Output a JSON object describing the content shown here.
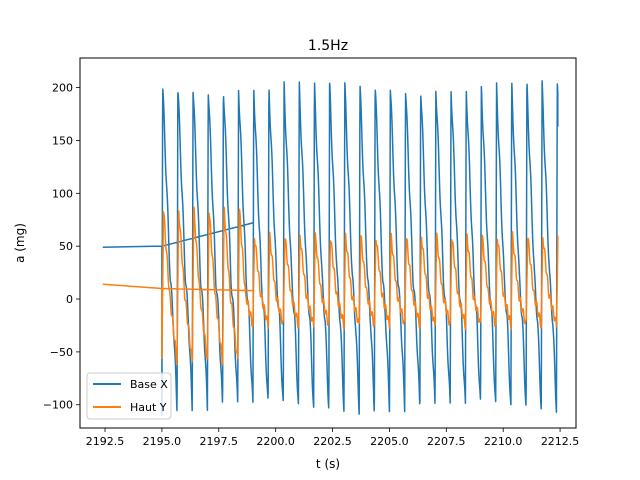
{
  "chart_data": {
    "type": "line",
    "title": "1.5Hz",
    "xlabel": "t (s)",
    "ylabel": "a (mg)",
    "xlim": [
      2191.4,
      2213.2
    ],
    "ylim": [
      -122,
      228
    ],
    "x_ticks": [
      2192.5,
      2195.0,
      2197.5,
      2200.0,
      2202.5,
      2205.0,
      2207.5,
      2210.0,
      2212.5
    ],
    "x_tick_labels": [
      "2192.5",
      "2195.0",
      "2197.5",
      "2200.0",
      "2202.5",
      "2205.0",
      "2207.5",
      "2210.0",
      "2212.5"
    ],
    "y_ticks": [
      -100,
      -50,
      0,
      50,
      100,
      150,
      200
    ],
    "y_tick_labels": [
      "−100",
      "−50",
      "0",
      "50",
      "100",
      "150",
      "200"
    ],
    "grid": false,
    "legend_position": "lower-left",
    "series": [
      {
        "name": "Base X",
        "color": "#1f77b4",
        "signal": {
          "start_x": 2192.4,
          "start_y": 49,
          "gap_end_x": 2195.0,
          "gap_end_y": 50,
          "loop_back_to_x": 2199.0,
          "loop_back_y": 72,
          "burst_start_x": 2195.0,
          "end_x": 2212.4,
          "period": 0.667,
          "peak": 202,
          "trough": -104,
          "end_y": 163
        }
      },
      {
        "name": "Haut Y",
        "color": "#ff7f0e",
        "signal": {
          "start_x": 2192.4,
          "start_y": 14,
          "gap_end_x": 2195.0,
          "gap_end_y": 10,
          "loop_back_to_x": 2199.0,
          "loop_back_y": 8,
          "burst_start_x": 2195.0,
          "end_x": 2212.4,
          "period": 0.667,
          "peak": 60,
          "trough": -25,
          "end_y": 60,
          "transient_peak": 86,
          "transient_trough": -60,
          "transient_end_x": 2198.7
        }
      }
    ]
  }
}
